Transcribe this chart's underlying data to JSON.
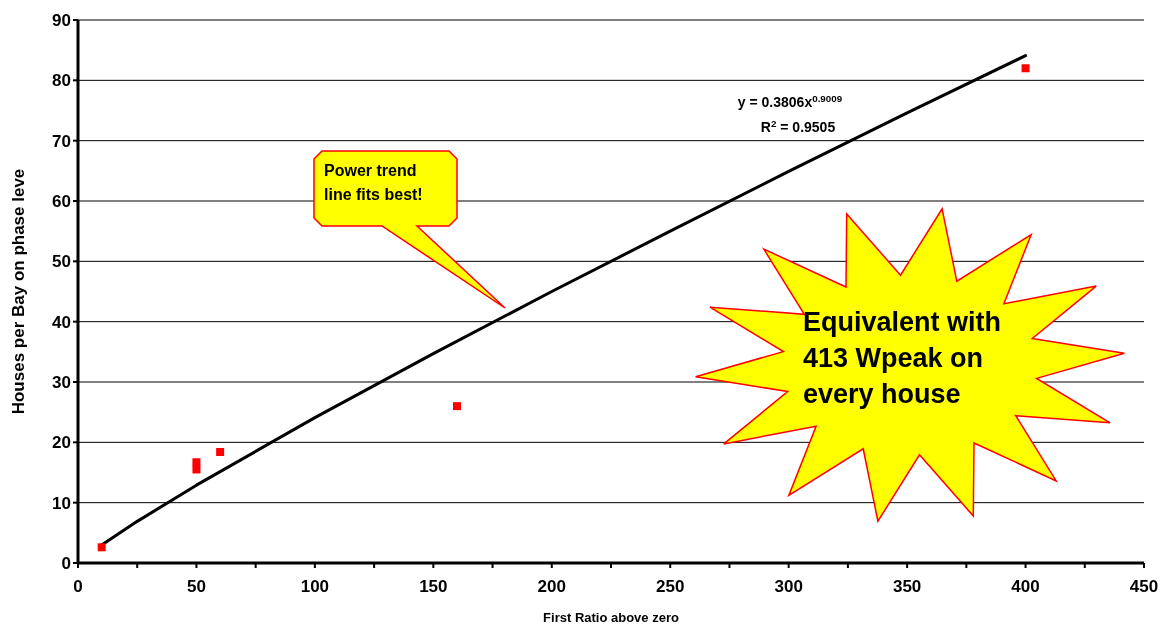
{
  "chart_data": {
    "type": "scatter",
    "xlabel": "First Ratio above zero",
    "ylabel": "Houses per Bay on phase leve",
    "xlim": [
      0,
      450
    ],
    "ylim": [
      0,
      90
    ],
    "xticks": [
      0,
      {
        "value": 25,
        "label": null
      },
      50,
      {
        "value": 75,
        "label": null
      },
      100,
      {
        "value": 125,
        "label": null
      },
      150,
      {
        "value": 175,
        "label": null
      },
      200,
      {
        "value": 225,
        "label": null
      },
      250,
      {
        "value": 275,
        "label": null
      },
      300,
      {
        "value": 325,
        "label": null
      },
      350,
      {
        "value": 375,
        "label": null
      },
      400,
      {
        "value": 425,
        "label": null
      },
      450
    ],
    "yticks": [
      0,
      10,
      20,
      30,
      40,
      50,
      60,
      70,
      80,
      90
    ],
    "grid": "y",
    "series": [
      {
        "color": "#ff0000",
        "marker": "square",
        "x": [
          10,
          50,
          50,
          60,
          160,
          400
        ],
        "values": [
          2.6,
          16.7,
          15.5,
          18.4,
          26.0,
          82.0
        ]
      },
      {
        "type": "line",
        "color": "#000000",
        "marker": "none",
        "line_style": "solid",
        "x": [
          10,
          25,
          50,
          100,
          150,
          200,
          250,
          300,
          350,
          400
        ],
        "values": [
          3.0,
          6.9,
          12.9,
          24.1,
          34.7,
          45.0,
          55.0,
          64.9,
          74.6,
          84.1
        ]
      }
    ],
    "annotations": [
      "Power trend line fits best!",
      "y = 0.3806x$^{0.9009}$",
      "R$^{2}$ = 0.9505",
      "Equivalent with 413 Wpeak on every house"
    ]
  }
}
